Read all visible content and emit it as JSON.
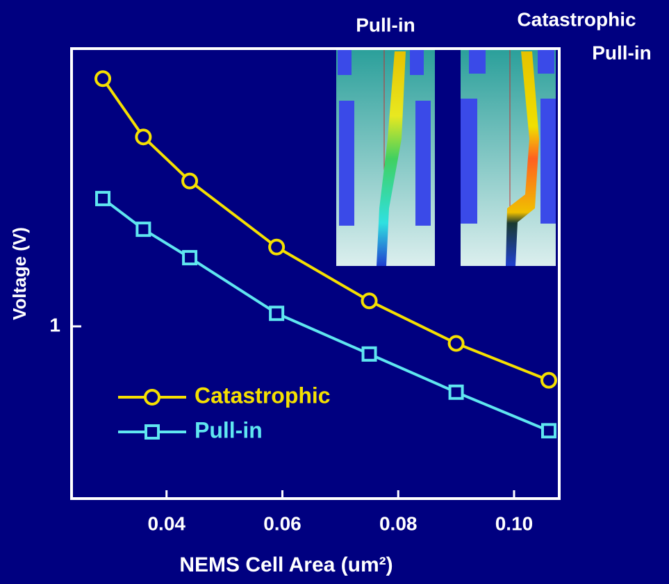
{
  "chart_data": {
    "type": "line",
    "x_label": "NEMS Cell Area (um²)",
    "y_label": "Voltage (V)",
    "x": [
      0.029,
      0.036,
      0.044,
      0.059,
      0.075,
      0.09,
      0.106
    ],
    "series": [
      {
        "name": "Catastrophic",
        "color": "#f5e000",
        "marker": "circle",
        "values": [
          2.11,
          1.77,
          1.55,
          1.27,
          1.08,
          0.95,
          0.85
        ]
      },
      {
        "name": "Pull-in",
        "color": "#5fe6f0",
        "marker": "square",
        "values": [
          1.47,
          1.34,
          1.23,
          1.04,
          0.92,
          0.82,
          0.73
        ]
      }
    ],
    "xlim": [
      0.0236,
      0.1078
    ],
    "xticks": [
      0.04,
      0.06,
      0.08,
      {
        "value": 0.1,
        "label": "0.10"
      }
    ],
    "ylim": [
      0.595,
      2.31
    ],
    "yticks": [
      1
    ],
    "y_log": true,
    "legend": "lower left",
    "insets": [
      {
        "label": [
          "Pull-in"
        ]
      },
      {
        "label": [
          "Catastrophic",
          "Pull-in"
        ]
      }
    ]
  }
}
